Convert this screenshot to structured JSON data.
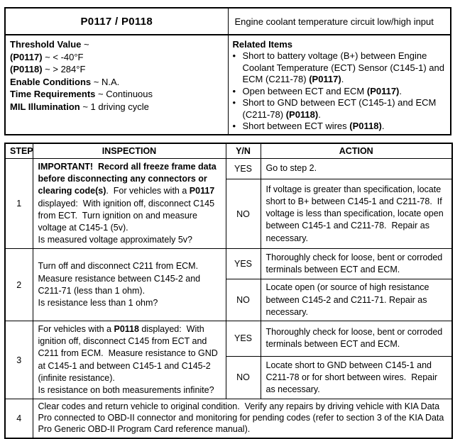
{
  "colors": {
    "page_bg": "#ffffff",
    "text": "#000000",
    "border": "#000000"
  },
  "dtc_header": {
    "code": "P0117 / P0118",
    "description": "Engine coolant temperature circuit low/high input",
    "conditions": [
      [
        {
          "t": "Threshold Value",
          "b": true
        },
        {
          "t": " ~"
        }
      ],
      [
        {
          "t": "(P0117)",
          "b": true
        },
        {
          "t": " ~ < -40°F"
        }
      ],
      [
        {
          "t": "(P0118)",
          "b": true
        },
        {
          "t": " ~ > 284°F"
        }
      ],
      [
        {
          "t": "Enable Conditions",
          "b": true
        },
        {
          "t": " ~ N.A."
        }
      ],
      [
        {
          "t": "Time Requirements",
          "b": true
        },
        {
          "t": " ~ Continuous"
        }
      ],
      [
        {
          "t": "MIL Illumination",
          "b": true
        },
        {
          "t": " ~ 1 driving cycle"
        }
      ]
    ],
    "related": {
      "title": "Related Items",
      "bullet_glyph": "•",
      "items": [
        [
          {
            "t": "Short to battery voltage (B+) between Engine Coolant Temperature (ECT) Sensor (C145-1) and ECM (C211-78) "
          },
          {
            "t": "(P0117)",
            "b": true
          },
          {
            "t": "."
          }
        ],
        [
          {
            "t": "Open between ECT and ECM "
          },
          {
            "t": "(P0117)",
            "b": true
          },
          {
            "t": "."
          }
        ],
        [
          {
            "t": "Short to GND between ECT (C145-1) and ECM (C211-78) "
          },
          {
            "t": "(P0118)",
            "b": true
          },
          {
            "t": "."
          }
        ],
        [
          {
            "t": "Short between ECT wires "
          },
          {
            "t": "(P0118)",
            "b": true
          },
          {
            "t": "."
          }
        ]
      ]
    }
  },
  "procedure": {
    "headers": {
      "step": "STEP",
      "inspection": "INSPECTION",
      "yn": "Y/N",
      "action": "ACTION"
    },
    "rows": [
      {
        "step": "1",
        "inspection": [
          {
            "t": "IMPORTANT!  Record all freeze frame data before disconnecting any connectors or clearing code(s)",
            "b": true
          },
          {
            "t": ".  For vehicles with a "
          },
          {
            "t": "P0117",
            "b": true
          },
          {
            "t": " displayed:  With ignition off, disconnect C145 from ECT.  Turn ignition on and measure voltage at C145-1 (5v)."
          },
          {
            "br": true
          },
          {
            "t": "Is measured voltage approximately 5v?"
          }
        ],
        "branches": [
          {
            "yn": "YES",
            "action": [
              {
                "t": "Go to step 2."
              }
            ]
          },
          {
            "yn": "NO",
            "action": [
              {
                "t": "If voltage is greater than specification, locate short to B+ between C145-1 and C211-78.  If voltage is less than specification, locate open between C145-1 and C211-78.  Repair as necessary."
              }
            ]
          }
        ]
      },
      {
        "step": "2",
        "inspection": [
          {
            "t": "Turn off and disconnect C211 from ECM.  Measure resistance between C145-2 and C211-71 (less than 1 ohm)."
          },
          {
            "br": true
          },
          {
            "t": "Is resistance less than 1 ohm?"
          }
        ],
        "branches": [
          {
            "yn": "YES",
            "action": [
              {
                "t": "Thoroughly check for loose, bent or corroded terminals between ECT and ECM."
              }
            ]
          },
          {
            "yn": "NO",
            "action": [
              {
                "t": "Locate open (or source of high resistance between C145-2 and C211-71. Repair as necessary."
              }
            ]
          }
        ]
      },
      {
        "step": "3",
        "inspection": [
          {
            "t": "For vehicles with a "
          },
          {
            "t": "P0118",
            "b": true
          },
          {
            "t": " displayed:  With ignition off, disconnect C145 from ECT and C211 from ECM.  Measure resistance to GND at C145-1 and between C145-1 and C145-2 (infinite resistance)."
          },
          {
            "br": true
          },
          {
            "t": "Is resistance on both measurements infinite?"
          }
        ],
        "branches": [
          {
            "yn": "YES",
            "action": [
              {
                "t": "Thoroughly check for loose, bent or corroded terminals between ECT and ECM."
              }
            ]
          },
          {
            "yn": "NO",
            "action": [
              {
                "t": "Locate short to GND between C145-1 and C211-78 or for short between wires.  Repair as necessary."
              }
            ]
          }
        ]
      },
      {
        "step": "4",
        "merged": [
          {
            "t": "Clear codes and return vehicle to original condition.  Verify any repairs by driving vehicle with KIA Data Pro connected to OBD-II connector and monitoring for pending codes (refer to section 3 of the KIA Data Pro Generic OBD-II Program Card reference manual)."
          }
        ]
      }
    ]
  }
}
